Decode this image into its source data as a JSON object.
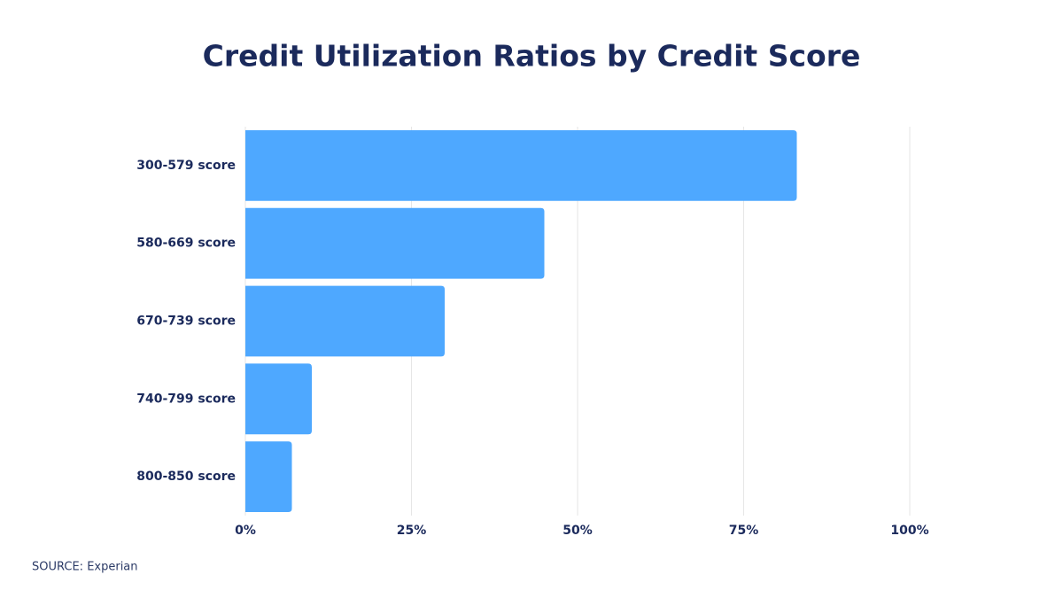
{
  "chart_data": {
    "type": "hbar",
    "title": "Credit Utilization Ratios by Credit Score",
    "categories": [
      "300-579 score",
      "580-669 score",
      "670-739 score",
      "740-799 score",
      "800-850 score"
    ],
    "values": [
      83,
      45,
      30,
      10,
      7
    ],
    "color": "#4ea8ff",
    "xlim": [
      0,
      100
    ],
    "xticks": [
      {
        "value": 0,
        "label": "0%"
      },
      {
        "value": 25,
        "label": "25%"
      },
      {
        "value": 50,
        "label": "50%"
      },
      {
        "value": 75,
        "label": "75%"
      },
      {
        "value": 100,
        "label": "100%"
      }
    ],
    "grid": true,
    "source": "SOURCE: Experian"
  }
}
